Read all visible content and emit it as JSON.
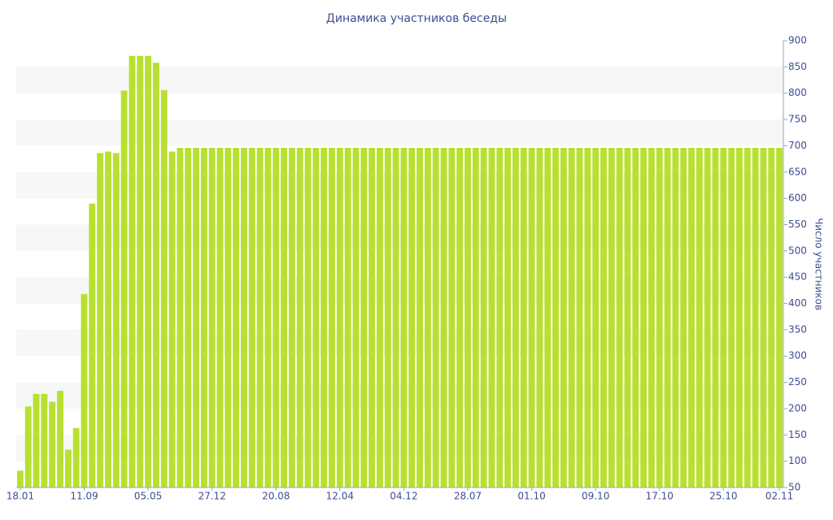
{
  "chart_data": {
    "type": "bar",
    "title": "Динамика участников беседы",
    "y_label": "Число участников",
    "categories": [
      "18.01",
      null,
      null,
      null,
      null,
      null,
      null,
      null,
      "11.09",
      null,
      null,
      null,
      null,
      null,
      null,
      null,
      "05.05",
      null,
      null,
      null,
      null,
      null,
      null,
      null,
      "27.12",
      null,
      null,
      null,
      null,
      null,
      null,
      null,
      "20.08",
      null,
      null,
      null,
      null,
      null,
      null,
      null,
      "12.04",
      null,
      null,
      null,
      null,
      null,
      null,
      null,
      "04.12",
      null,
      null,
      null,
      null,
      null,
      null,
      null,
      "28.07",
      null,
      null,
      null,
      null,
      null,
      null,
      null,
      "01.10",
      null,
      null,
      null,
      null,
      null,
      null,
      null,
      "09.10",
      null,
      null,
      null,
      null,
      null,
      null,
      null,
      "17.10",
      null,
      null,
      null,
      null,
      null,
      null,
      null,
      "25.10",
      null,
      null,
      null,
      null,
      null,
      null,
      "02.11"
    ],
    "values": [
      82,
      204,
      228,
      228,
      213,
      234,
      122,
      163,
      418,
      590,
      686,
      689,
      686,
      805,
      871,
      871,
      871,
      858,
      806,
      689,
      696,
      696,
      696,
      696,
      696,
      696,
      696,
      696,
      696,
      696,
      696,
      696,
      696,
      696,
      696,
      696,
      696,
      696,
      696,
      696,
      696,
      696,
      696,
      696,
      696,
      696,
      696,
      696,
      696,
      696,
      696,
      696,
      696,
      696,
      696,
      696,
      696,
      696,
      696,
      696,
      696,
      696,
      696,
      696,
      696,
      696,
      696,
      696,
      696,
      696,
      696,
      696,
      696,
      696,
      696,
      696,
      696,
      696,
      696,
      696,
      696,
      696,
      696,
      696,
      696,
      696,
      696,
      696,
      696,
      696,
      696,
      696,
      696,
      696,
      696,
      696
    ],
    "color": "#b8e030",
    "ylim": [
      50,
      900
    ],
    "yticks": [
      50,
      100,
      150,
      200,
      250,
      300,
      350,
      400,
      450,
      500,
      550,
      600,
      650,
      700,
      750,
      800,
      850,
      900
    ],
    "y_axis_side": "right",
    "grid": true
  }
}
